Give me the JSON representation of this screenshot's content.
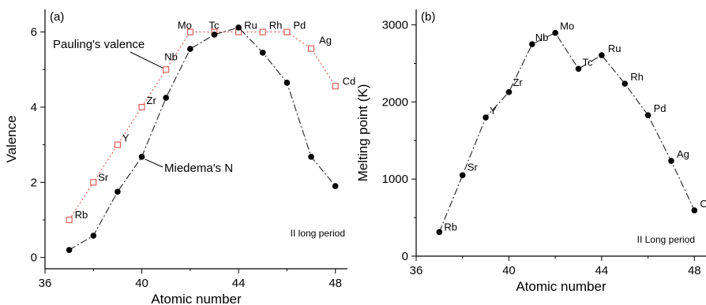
{
  "chart_data": [
    {
      "type": "line",
      "panel_label": "(a)",
      "xlabel": "Atomic number",
      "ylabel": "Valence",
      "xlim": [
        36,
        48.5
      ],
      "ylim": [
        -0.3,
        6.6
      ],
      "xticks": [
        "36",
        "40",
        "44",
        "48"
      ],
      "yticks": [
        "0",
        "2",
        "4",
        "6"
      ],
      "annotation": "II long period",
      "series": [
        {
          "name": "Pauling's valence",
          "marker": "open-square",
          "color": "#d9534f",
          "line_style": "dotted",
          "x": [
            37,
            38,
            39,
            40,
            41,
            42,
            43,
            44,
            45,
            46,
            47,
            48
          ],
          "y": [
            1,
            2,
            3,
            4,
            5,
            6,
            6,
            6,
            6,
            6,
            5.56,
            4.56
          ]
        },
        {
          "name": "Miedema's N",
          "marker": "filled-circle",
          "color": "#000000",
          "line_style": "dash-dot",
          "x": [
            37,
            38,
            39,
            40,
            41,
            42,
            43,
            44,
            45,
            46,
            47,
            48
          ],
          "y": [
            0.2,
            0.58,
            1.75,
            2.68,
            4.25,
            5.55,
            5.93,
            6.12,
            5.45,
            4.65,
            2.68,
            1.9
          ]
        }
      ],
      "element_labels": [
        "Rb",
        "Sr",
        "Y",
        "Zr",
        "Nb",
        "Mo",
        "Tc",
        "Ru",
        "Rh",
        "Pd",
        "Ag",
        "Cd"
      ]
    },
    {
      "type": "line",
      "panel_label": "(b)",
      "xlabel": "Atomic number",
      "ylabel": "Melting point (K)",
      "xlim": [
        36,
        48.5
      ],
      "ylim": [
        0,
        3200
      ],
      "xticks": [
        "36",
        "40",
        "44",
        "48"
      ],
      "yticks": [
        "0",
        "1000",
        "2000",
        "3000"
      ],
      "annotation": "II Long period",
      "series": [
        {
          "name": "",
          "marker": "filled-circle",
          "color": "#000000",
          "line_style": "dash-dot",
          "x": [
            37,
            38,
            39,
            40,
            41,
            42,
            43,
            44,
            45,
            46,
            47,
            48
          ],
          "y": [
            312,
            1050,
            1799,
            2128,
            2750,
            2896,
            2430,
            2607,
            2237,
            1828,
            1235,
            594
          ]
        }
      ],
      "element_labels": [
        "Rb",
        "Sr",
        "Y",
        "Zr",
        "Nb",
        "Mo",
        "Tc",
        "Ru",
        "Rh",
        "Pd",
        "Ag",
        "Cd"
      ]
    }
  ]
}
